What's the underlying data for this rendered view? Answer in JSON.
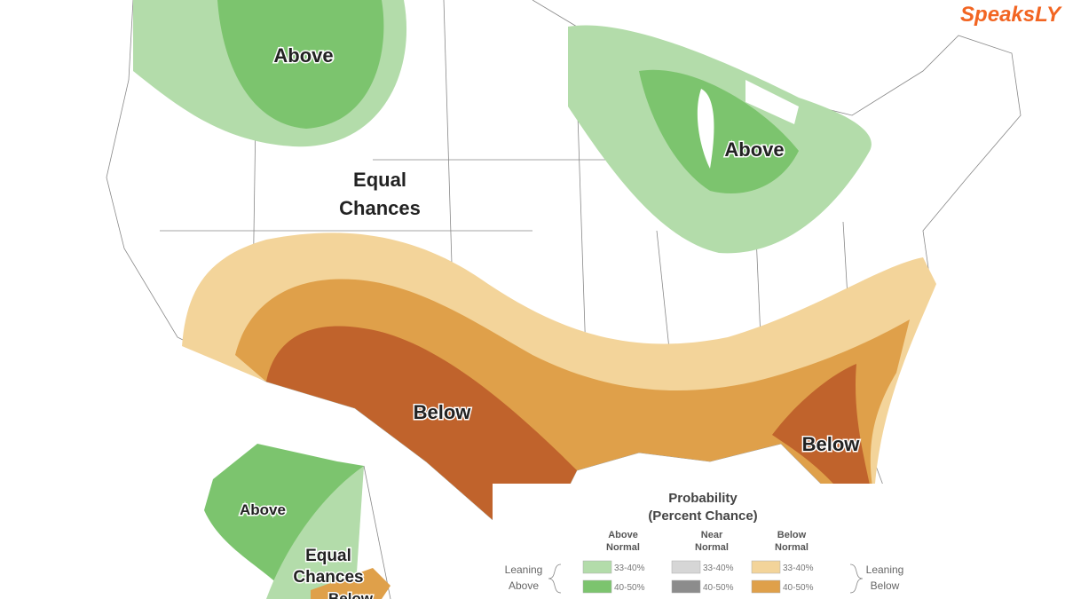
{
  "brand": "SpeaksLY",
  "map_labels": {
    "northwest": "Above",
    "great_lakes": "Above",
    "west": [
      "Equal",
      "Chances"
    ],
    "southwest": "Below",
    "southeast": "Below",
    "alaska_north": "Above",
    "alaska_south": [
      "Equal",
      "Chances"
    ],
    "alaska_bottom": "Below"
  },
  "legend": {
    "title": [
      "Probability",
      "(Percent Chance)"
    ],
    "left_label": [
      "Leaning",
      "Above"
    ],
    "right_label": [
      "Leaning",
      "Below"
    ],
    "columns": [
      {
        "header": [
          "Above",
          "Normal"
        ],
        "ranges": [
          "33-40%",
          "40-50%"
        ]
      },
      {
        "header": [
          "Near",
          "Normal"
        ],
        "ranges": [
          "33-40%",
          "40-50%"
        ]
      },
      {
        "header": [
          "Below",
          "Normal"
        ],
        "ranges": [
          "33-40%",
          "40-50%"
        ]
      }
    ]
  }
}
